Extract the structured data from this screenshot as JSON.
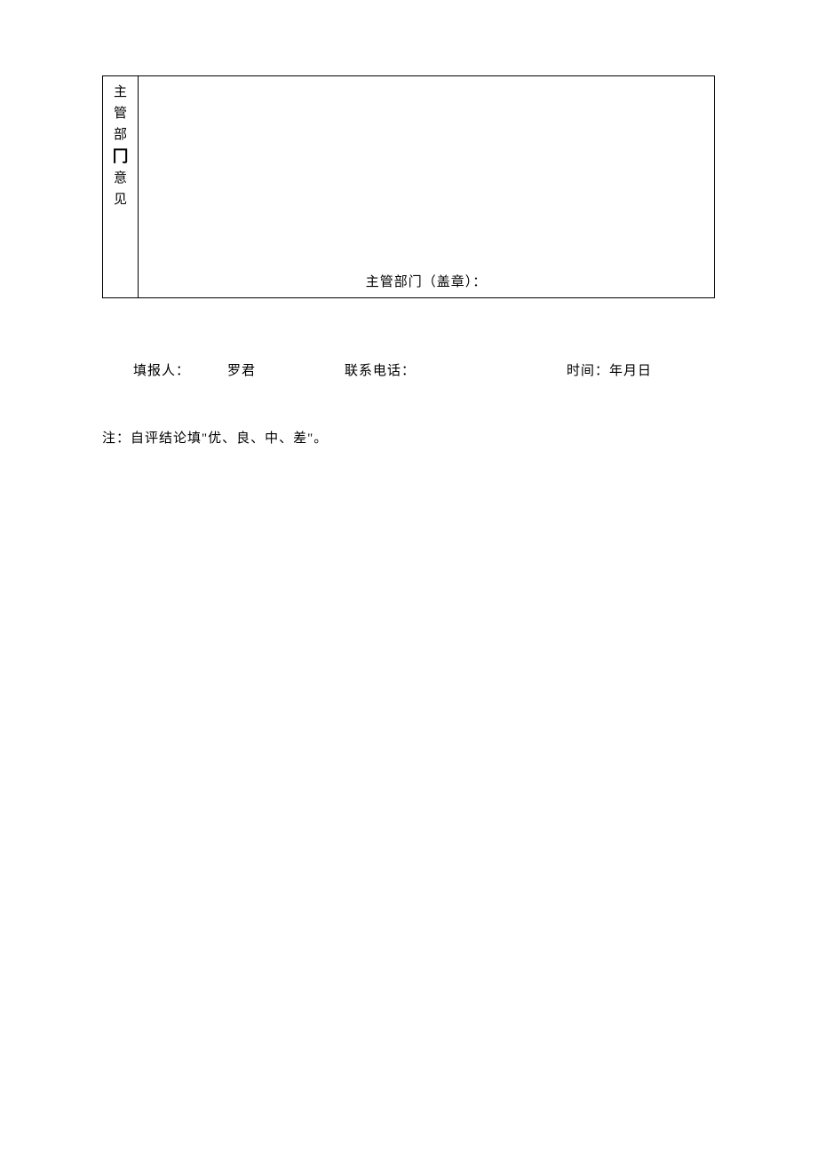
{
  "table": {
    "label_chars": {
      "c1": "主",
      "c2": "管",
      "c3": "部",
      "c4": "冂",
      "c5": "意",
      "c6": "见"
    },
    "seal_line": "主管部门（盖章）："
  },
  "info": {
    "reporter_label": "填报人：",
    "reporter_name": "罗君",
    "phone_label": "联系电话：",
    "time_label": "时间：年月日"
  },
  "note": "注：自评结论填\"优、良、中、差\"。"
}
